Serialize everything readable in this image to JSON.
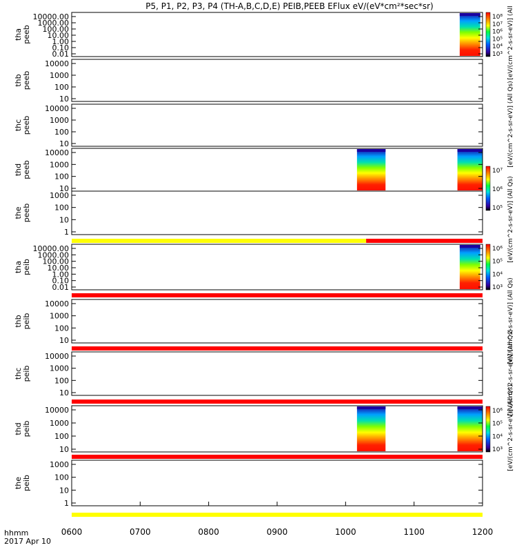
{
  "title": "P5, P1, P2, P3, P4 (TH-A,B,C,D,E) PEIB,PEEB EFlux eV/(eV*cm²*sec*sr)",
  "colors": {
    "bar_yellow": "#ffff00",
    "bar_red": "#ff0000",
    "bar_black": "#000000"
  },
  "chart_data": [
    {
      "type": "heatmap",
      "panels": [
        {
          "probe": "tha",
          "instrument": "peeb",
          "yticks": [
            "10000.00",
            "1000.00",
            "100.00",
            "10.00",
            "1.00",
            "0.10",
            "0.01"
          ],
          "data_blocks": [
            {
              "x": [
                "11:40",
                "11:58"
              ],
              "intensity": "high"
            }
          ],
          "colorbar": {
            "ticks": [
              "10⁸",
              "10⁷",
              "10⁶",
              "10⁵",
              "10⁴",
              "10³"
            ],
            "label": "[eV/(cm^2-s-sr-eV)] (All"
          }
        },
        {
          "probe": "thb",
          "instrument": "peeb",
          "yticks": [
            "10000",
            "1000",
            "100",
            "10"
          ],
          "data_blocks": []
        },
        {
          "probe": "thc",
          "instrument": "peeb",
          "yticks": [
            "10000",
            "1000",
            "100",
            "10"
          ],
          "data_blocks": [],
          "colorbar": {
            "label": "[eV/(cm^2-s-sr-eV)] (All Qs)"
          }
        },
        {
          "probe": "thd",
          "instrument": "peeb",
          "yticks": [
            "10000",
            "1000",
            "100",
            "10"
          ],
          "data_blocks": [
            {
              "x": [
                "10:10",
                "10:35"
              ],
              "intensity": "high"
            },
            {
              "x": [
                "11:38",
                "12:00"
              ],
              "intensity": "high"
            }
          ],
          "colorbar": {
            "ticks": [
              "10⁷",
              "10⁶",
              "10⁵"
            ]
          }
        },
        {
          "probe": "the",
          "instrument": "peeb",
          "yticks": [
            "1000",
            "100",
            "10",
            "1"
          ],
          "data_blocks": [],
          "colorbar": {
            "label": "[eV/(cm^2-s-sr-eV)] (All Qs)"
          }
        },
        {
          "probe": "tha",
          "instrument": "peib",
          "yticks": [
            "10000.00",
            "1000.00",
            "100.00",
            "10.00",
            "1.00",
            "0.10",
            "0.01"
          ],
          "data_blocks": [
            {
              "x": [
                "11:40",
                "11:58"
              ],
              "intensity": "high"
            }
          ],
          "colorbar": {
            "ticks": [
              "10⁶",
              "10⁵",
              "10⁴",
              "10³"
            ]
          }
        },
        {
          "probe": "thb",
          "instrument": "peib",
          "yticks": [
            "10000",
            "1000",
            "100",
            "10"
          ],
          "data_blocks": [],
          "colorbar": {
            "label": "[eV/(cm^2-s-sr-eV)] (All Qs)"
          }
        },
        {
          "probe": "thc",
          "instrument": "peib",
          "yticks": [
            "10000",
            "1000",
            "100",
            "10"
          ],
          "data_blocks": [],
          "colorbar": {
            "label": "[eV/(cm^2-s-sr-eV)] (All Qs)"
          }
        },
        {
          "probe": "thd",
          "instrument": "peib",
          "yticks": [
            "10000",
            "1000",
            "100",
            "10"
          ],
          "data_blocks": [
            {
              "x": [
                "10:10",
                "10:35"
              ],
              "intensity": "high"
            },
            {
              "x": [
                "11:38",
                "12:00"
              ],
              "intensity": "high"
            }
          ],
          "colorbar": {
            "ticks": [
              "10⁶",
              "10⁵",
              "10⁴",
              "10³"
            ],
            "label": "[eV/(cm^2-s-sr-eV)] (All Qs)"
          }
        },
        {
          "probe": "the",
          "instrument": "peib",
          "yticks": [
            "1000",
            "100",
            "10",
            "1"
          ],
          "data_blocks": []
        }
      ],
      "status_bars": [
        {
          "after_panel": 5,
          "segments": [
            {
              "x": [
                "06:00",
                "10:18"
              ],
              "color": "yellow"
            },
            {
              "x": [
                "10:18",
                "12:00"
              ],
              "color": "red"
            }
          ]
        },
        {
          "after_panel": 6,
          "segments": [
            {
              "x": [
                "06:00",
                "12:00"
              ],
              "color": "red"
            }
          ]
        },
        {
          "after_panel": 7,
          "segments": [
            {
              "x": [
                "06:00",
                "12:00"
              ],
              "color": "red"
            }
          ]
        },
        {
          "after_panel": 8,
          "segments": [
            {
              "x": [
                "06:00",
                "12:00"
              ],
              "color": "red"
            }
          ]
        },
        {
          "after_panel": 9,
          "segments": [
            {
              "x": [
                "06:00",
                "12:00"
              ],
              "color": "red"
            }
          ]
        },
        {
          "after_panel": 10,
          "segments": [
            {
              "x": [
                "06:00",
                "12:00"
              ],
              "color": "yellow"
            }
          ]
        }
      ],
      "xaxis": {
        "ticks": [
          "0600",
          "0700",
          "0800",
          "0900",
          "1000",
          "1100",
          "1200"
        ],
        "label_top": "hhmm",
        "label_bottom": "2017 Apr 10",
        "range": [
          "06:00",
          "12:00"
        ]
      }
    }
  ]
}
